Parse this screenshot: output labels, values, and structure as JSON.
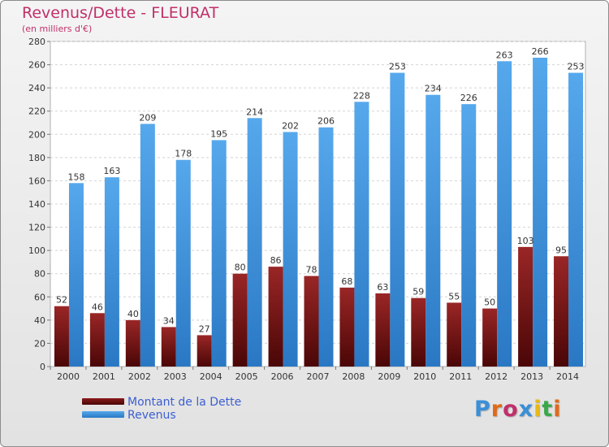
{
  "chart_data": {
    "type": "bar",
    "title": "Revenus/Dette - FLEURAT",
    "subtitle": "(en milliers d'€)",
    "categories": [
      "2000",
      "2001",
      "2002",
      "2003",
      "2004",
      "2005",
      "2006",
      "2007",
      "2008",
      "2009",
      "2010",
      "2011",
      "2012",
      "2013",
      "2014"
    ],
    "series": [
      {
        "name": "Montant de la Dette",
        "color": "#8b1a1a",
        "values": [
          52,
          46,
          40,
          34,
          27,
          80,
          86,
          78,
          68,
          63,
          59,
          55,
          50,
          103,
          95
        ]
      },
      {
        "name": "Revenus",
        "color": "#3a8fd8",
        "values": [
          158,
          163,
          209,
          178,
          195,
          214,
          202,
          206,
          228,
          253,
          234,
          226,
          263,
          266,
          253
        ]
      }
    ],
    "ylim": [
      0,
      280
    ],
    "yticks": [
      0,
      20,
      40,
      60,
      80,
      100,
      120,
      140,
      160,
      180,
      200,
      220,
      240,
      260,
      280
    ],
    "grid": true,
    "legend_position": "bottom-left"
  },
  "legend": {
    "debt_label": "Montant de la Dette",
    "revenue_label": "Revenus"
  },
  "logo": {
    "text": "Proxiti",
    "colors": [
      "#3a8fd8",
      "#e06a1a",
      "#c0306a",
      "#3a8fd8",
      "#e6b81a",
      "#3aa84a",
      "#e06a1a"
    ]
  }
}
